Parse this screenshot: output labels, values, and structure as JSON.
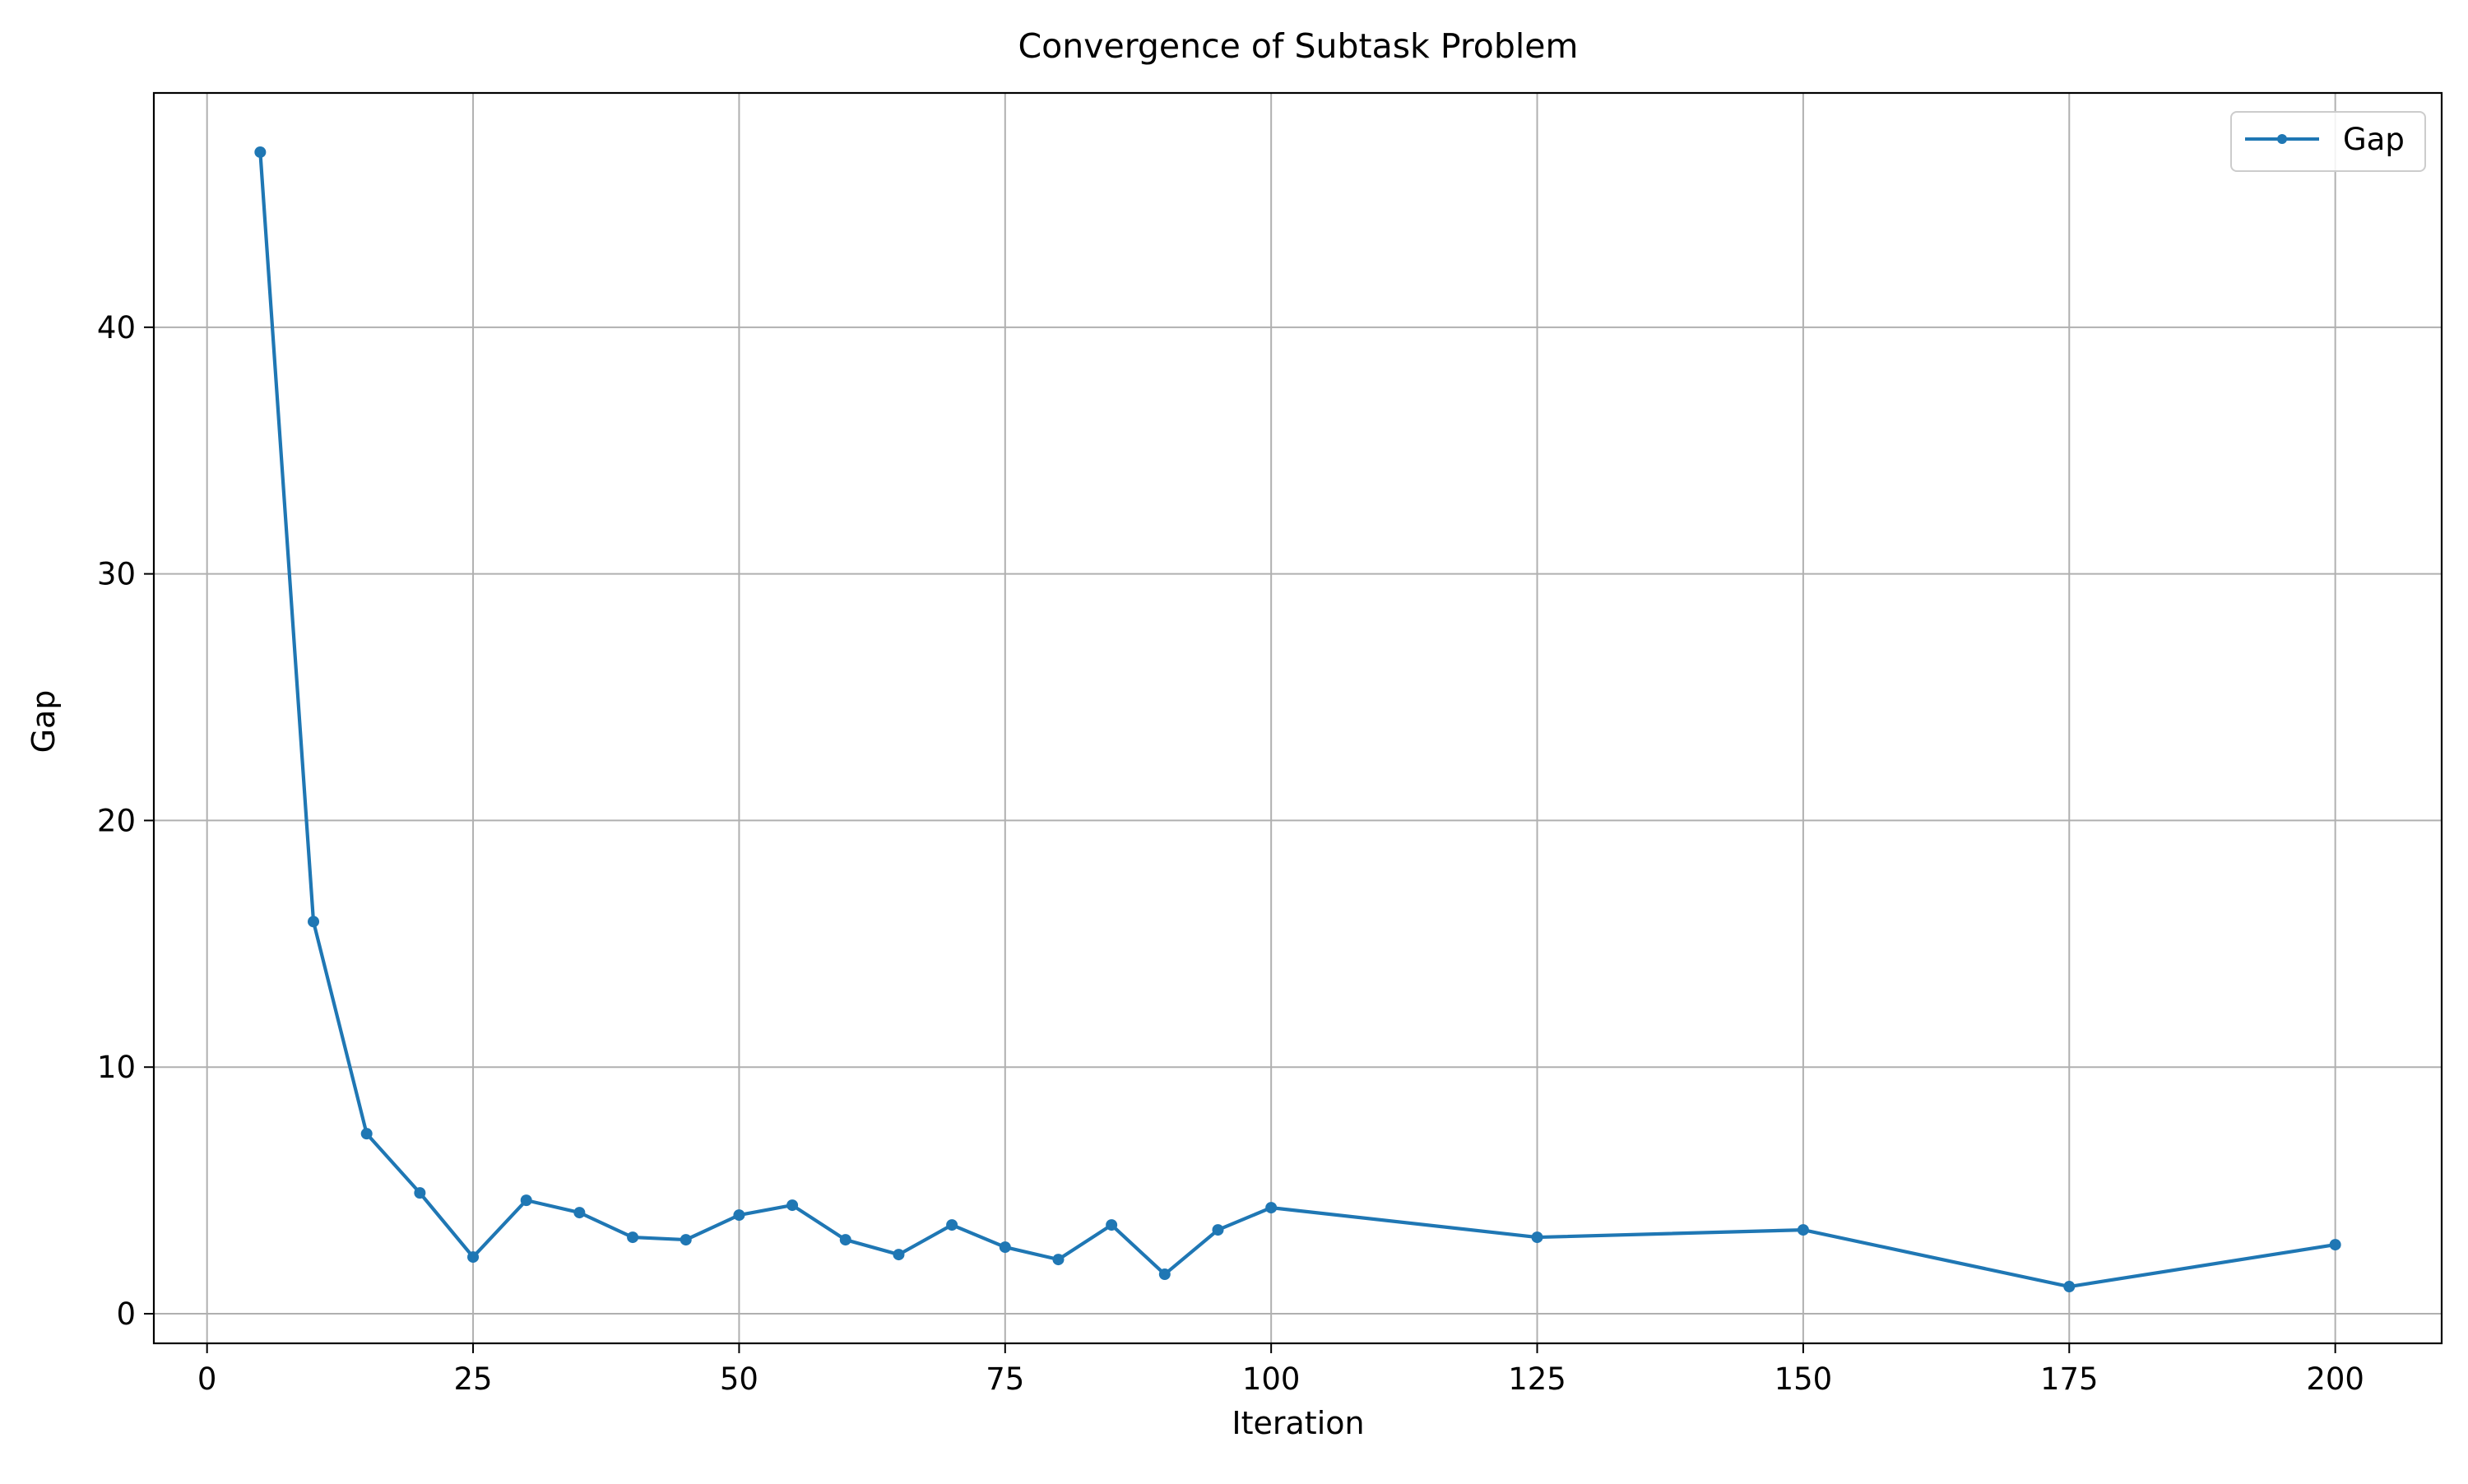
{
  "chart_data": {
    "type": "line",
    "title": "Convergence of Subtask Problem",
    "xlabel": "Iteration",
    "ylabel": "Gap",
    "xlim": [
      -5,
      210
    ],
    "ylim": [
      -1.2,
      49.5
    ],
    "xticks": [
      0,
      25,
      50,
      75,
      100,
      125,
      150,
      175,
      200
    ],
    "yticks": [
      0,
      10,
      20,
      30,
      40
    ],
    "grid": true,
    "legend": {
      "position": "top-right"
    },
    "series": [
      {
        "name": "Gap",
        "color": "#1f77b4",
        "marker": "circle",
        "x": [
          5,
          10,
          15,
          20,
          25,
          30,
          35,
          40,
          45,
          50,
          55,
          60,
          65,
          70,
          75,
          80,
          85,
          90,
          95,
          100,
          125,
          150,
          175,
          200
        ],
        "y": [
          47.1,
          15.9,
          7.3,
          4.9,
          2.3,
          4.6,
          4.1,
          3.1,
          3.0,
          4.0,
          4.4,
          3.0,
          2.4,
          3.6,
          2.7,
          2.2,
          3.6,
          1.6,
          3.4,
          4.3,
          3.1,
          3.4,
          1.1,
          2.8
        ]
      }
    ]
  }
}
